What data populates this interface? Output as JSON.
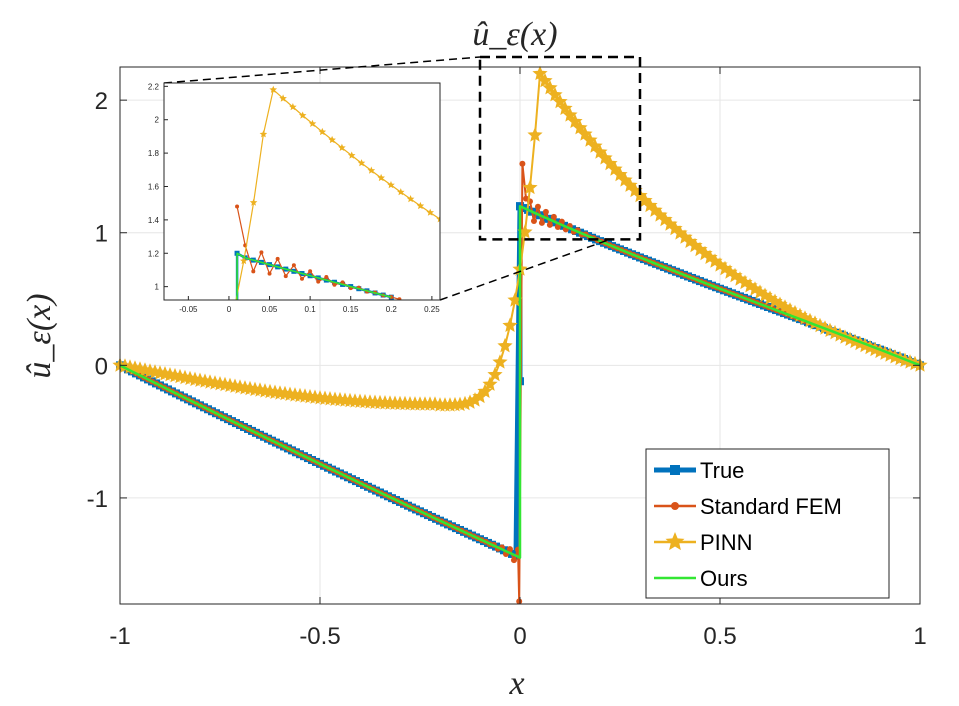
{
  "chart_data": {
    "type": "line",
    "title": "û_ε(x)",
    "xlabel": "x",
    "ylabel": "û_ε(x)",
    "xlim": [
      -1,
      1
    ],
    "ylim": [
      -1.8,
      2.25
    ],
    "xticks": [
      "-1",
      "-0.5",
      "0",
      "0.5",
      "1"
    ],
    "yticks": [
      "-1",
      "0",
      "1",
      "2"
    ],
    "xtick_values": [
      -1,
      -0.5,
      0,
      0.5,
      1
    ],
    "ytick_values": [
      -1,
      0,
      1,
      2
    ],
    "grid": true,
    "legend_position": "bottom-right",
    "series": [
      {
        "name": "True",
        "color": "#0072BD",
        "marker": "square"
      },
      {
        "name": "Standard FEM",
        "color": "#D95319",
        "marker": "circle"
      },
      {
        "name": "PINN",
        "color": "#EDB120",
        "marker": "star"
      },
      {
        "name": "Ours",
        "color": "#33E633",
        "marker": "none"
      }
    ],
    "model": {
      "description": "solution curves sampled from piecewise functions",
      "true_left": {
        "x_range": [
          -1,
          0
        ],
        "y_at_x0": -1.45
      },
      "true_right": {
        "x_range": [
          0,
          1
        ],
        "y_at_x0": 1.2
      },
      "true_midpoint": {
        "x": 0,
        "y": -0.12
      },
      "fem_overshoot": {
        "min": -1.78,
        "max": 1.52
      },
      "pinn_min": {
        "x": -0.25,
        "y": -0.3
      },
      "pinn_peak": {
        "x": 0.05,
        "y": 2.2
      }
    },
    "zoom_box": {
      "xlim": [
        -0.1,
        0.3
      ],
      "ylim": [
        0.95,
        2.25
      ]
    },
    "inset": {
      "xlim": [
        -0.08,
        0.26
      ],
      "ylim": [
        0.92,
        2.22
      ],
      "xticks": [
        "-0.05",
        "0",
        "0.05",
        "0.1",
        "0.15",
        "0.2",
        "0.25"
      ],
      "xtick_values": [
        -0.05,
        0,
        0.05,
        0.1,
        0.15,
        0.2,
        0.25
      ],
      "yticks": [
        "1",
        "1.2",
        "1.4",
        "1.6",
        "1.8",
        "2",
        "2.2"
      ],
      "ytick_values": [
        1,
        1.2,
        1.4,
        1.6,
        1.8,
        2,
        2.2
      ]
    }
  }
}
